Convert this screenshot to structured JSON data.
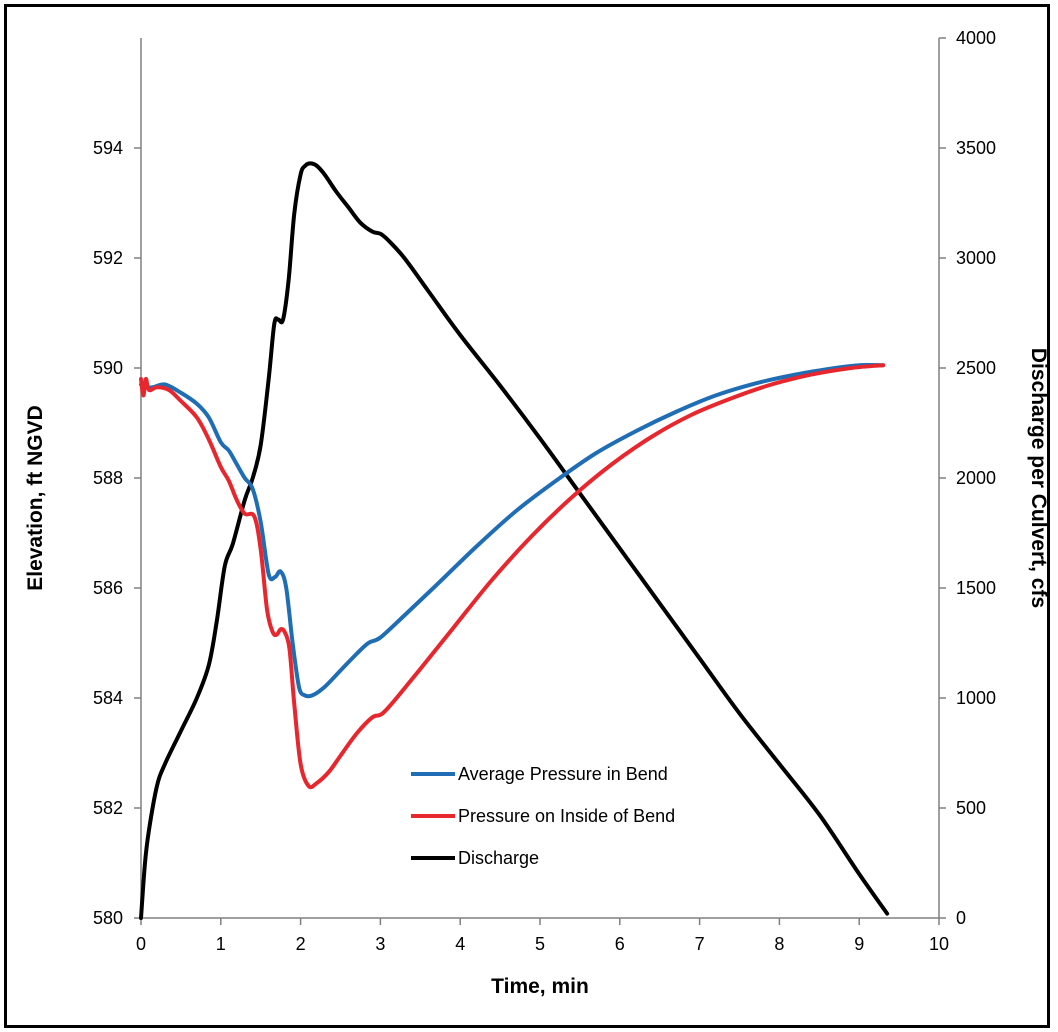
{
  "chart_data": {
    "type": "line",
    "xlabel": "Time, min",
    "ylabel_left": "Elevation, ft NGVD",
    "ylabel_right": "Discharge per Culvert, cfs",
    "xlim": [
      0,
      10
    ],
    "ylim_left": [
      580,
      596
    ],
    "ylim_right": [
      0,
      4000
    ],
    "x_ticks": [
      0,
      1,
      2,
      3,
      4,
      5,
      6,
      7,
      8,
      9,
      10
    ],
    "y_left_ticks": [
      580,
      582,
      584,
      586,
      588,
      590,
      592,
      594
    ],
    "y_right_ticks": [
      0,
      500,
      1000,
      1500,
      2000,
      2500,
      3000,
      3500,
      4000
    ],
    "grid": false,
    "legend_position": "lower-center",
    "series": [
      {
        "name": "Average Pressure in Bend",
        "axis": "left",
        "color": "#1F6DB5",
        "x": [
          0,
          0.05,
          0.15,
          0.3,
          0.5,
          0.7,
          0.85,
          1.0,
          1.1,
          1.2,
          1.3,
          1.4,
          1.5,
          1.6,
          1.68,
          1.75,
          1.82,
          1.9,
          1.98,
          2.05,
          2.15,
          2.3,
          2.5,
          2.7,
          2.85,
          3.0,
          3.3,
          3.7,
          4.2,
          4.7,
          5.2,
          5.7,
          6.2,
          6.7,
          7.2,
          7.7,
          8.2,
          8.7,
          9.0,
          9.3
        ],
        "y": [
          589.7,
          589.65,
          589.65,
          589.7,
          589.55,
          589.35,
          589.1,
          588.65,
          588.5,
          588.25,
          588.0,
          587.8,
          587.2,
          586.25,
          586.2,
          586.3,
          586.0,
          585.0,
          584.2,
          584.05,
          584.05,
          584.2,
          584.5,
          584.8,
          585.0,
          585.1,
          585.5,
          586.05,
          586.75,
          587.4,
          587.95,
          588.45,
          588.85,
          589.2,
          589.5,
          589.72,
          589.88,
          590.0,
          590.05,
          590.05
        ]
      },
      {
        "name": "Pressure on Inside of Bend",
        "axis": "left",
        "color": "#E8262D",
        "x": [
          0,
          0.03,
          0.06,
          0.1,
          0.2,
          0.35,
          0.5,
          0.7,
          0.85,
          1.0,
          1.1,
          1.2,
          1.3,
          1.42,
          1.5,
          1.58,
          1.65,
          1.7,
          1.75,
          1.8,
          1.86,
          1.92,
          2.0,
          2.1,
          2.2,
          2.35,
          2.5,
          2.7,
          2.9,
          3.05,
          3.4,
          3.9,
          4.4,
          4.9,
          5.4,
          5.9,
          6.4,
          6.9,
          7.4,
          7.9,
          8.4,
          8.9,
          9.3
        ],
        "y": [
          589.8,
          589.5,
          589.8,
          589.6,
          589.65,
          589.6,
          589.4,
          589.1,
          588.7,
          588.2,
          587.95,
          587.6,
          587.35,
          587.3,
          586.7,
          585.6,
          585.2,
          585.15,
          585.25,
          585.2,
          584.9,
          583.9,
          582.8,
          582.4,
          582.45,
          582.65,
          582.95,
          583.35,
          583.65,
          583.75,
          584.35,
          585.25,
          586.15,
          586.95,
          587.65,
          588.25,
          588.75,
          589.15,
          589.45,
          589.7,
          589.88,
          590.0,
          590.05
        ]
      },
      {
        "name": "Discharge",
        "axis": "right",
        "color": "#000000",
        "x": [
          0,
          0.05,
          0.1,
          0.2,
          0.3,
          0.5,
          0.7,
          0.85,
          0.95,
          1.05,
          1.15,
          1.3,
          1.4,
          1.5,
          1.6,
          1.67,
          1.72,
          1.78,
          1.85,
          1.92,
          2.0,
          2.06,
          2.12,
          2.2,
          2.3,
          2.45,
          2.6,
          2.75,
          2.9,
          3.0,
          3.1,
          3.3,
          3.6,
          4.0,
          4.5,
          5.0,
          5.5,
          6.0,
          6.5,
          7.0,
          7.5,
          8.0,
          8.5,
          9.0,
          9.35
        ],
        "y": [
          0,
          250,
          400,
          600,
          700,
          850,
          1000,
          1150,
          1350,
          1600,
          1700,
          1900,
          2000,
          2150,
          2450,
          2700,
          2720,
          2720,
          2900,
          3200,
          3380,
          3420,
          3430,
          3420,
          3380,
          3300,
          3230,
          3160,
          3120,
          3110,
          3080,
          3000,
          2850,
          2650,
          2420,
          2180,
          1930,
          1680,
          1430,
          1180,
          930,
          700,
          470,
          200,
          20
        ]
      }
    ]
  }
}
